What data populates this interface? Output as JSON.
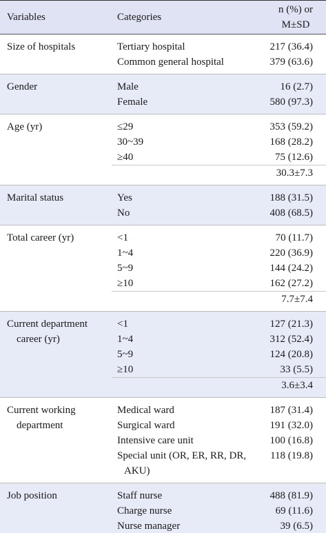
{
  "table": {
    "header": [
      "Variables",
      "Categories",
      "n (%) or M±SD"
    ],
    "groups": [
      {
        "variable": "Size of hospitals",
        "rows": [
          {
            "category": "Tertiary hospital",
            "value": "217 (36.4)"
          },
          {
            "category": "Common general hospital",
            "value": "379 (63.6)"
          }
        ]
      },
      {
        "variable": "Gender",
        "rows": [
          {
            "category": "Male",
            "value": "16 (2.7)"
          },
          {
            "category": "Female",
            "value": "580 (97.3)"
          }
        ]
      },
      {
        "variable": "Age (yr)",
        "rows": [
          {
            "category": "≤29",
            "value": "353 (59.2)"
          },
          {
            "category": "30~39",
            "value": "168 (28.2)"
          },
          {
            "category": "≥40",
            "value": "75 (12.6)"
          },
          {
            "value": "30.3±7.3"
          }
        ]
      },
      {
        "variable": "Marital status",
        "rows": [
          {
            "category": "Yes",
            "value": "188 (31.5)"
          },
          {
            "category": "No",
            "value": "408 (68.5)"
          }
        ]
      },
      {
        "variable": "Total career (yr)",
        "rows": [
          {
            "category": "<1",
            "value": "70 (11.7)"
          },
          {
            "category": "1~4",
            "value": "220 (36.9)"
          },
          {
            "category": "5~9",
            "value": "144 (24.2)"
          },
          {
            "category": "≥10",
            "value": "162 (27.2)"
          },
          {
            "value": "7.7±7.4"
          }
        ]
      },
      {
        "variable": "Current department career (yr)",
        "rows": [
          {
            "category": "<1",
            "value": "127 (21.3)"
          },
          {
            "category": "1~4",
            "value": "312 (52.4)"
          },
          {
            "category": "5~9",
            "value": "124 (20.8)"
          },
          {
            "category": "≥10",
            "value": "33 (5.5)"
          },
          {
            "value": "3.6±3.4"
          }
        ]
      },
      {
        "variable": "Current working department",
        "rows": [
          {
            "category": "Medical ward",
            "value": "187 (31.4)"
          },
          {
            "category": "Surgical ward",
            "value": "191 (32.0)"
          },
          {
            "category": "Intensive care unit",
            "value": "100 (16.8)"
          },
          {
            "category": "Special unit (OR, ER, RR, DR, AKU)",
            "value": "118 (19.8)"
          }
        ]
      },
      {
        "variable": "Job position",
        "rows": [
          {
            "category": "Staff nurse",
            "value": "488 (81.9)"
          },
          {
            "category": "Charge nurse",
            "value": "69 (11.6)"
          },
          {
            "category": "Nurse manager",
            "value": "39 (6.5)"
          }
        ]
      }
    ]
  }
}
